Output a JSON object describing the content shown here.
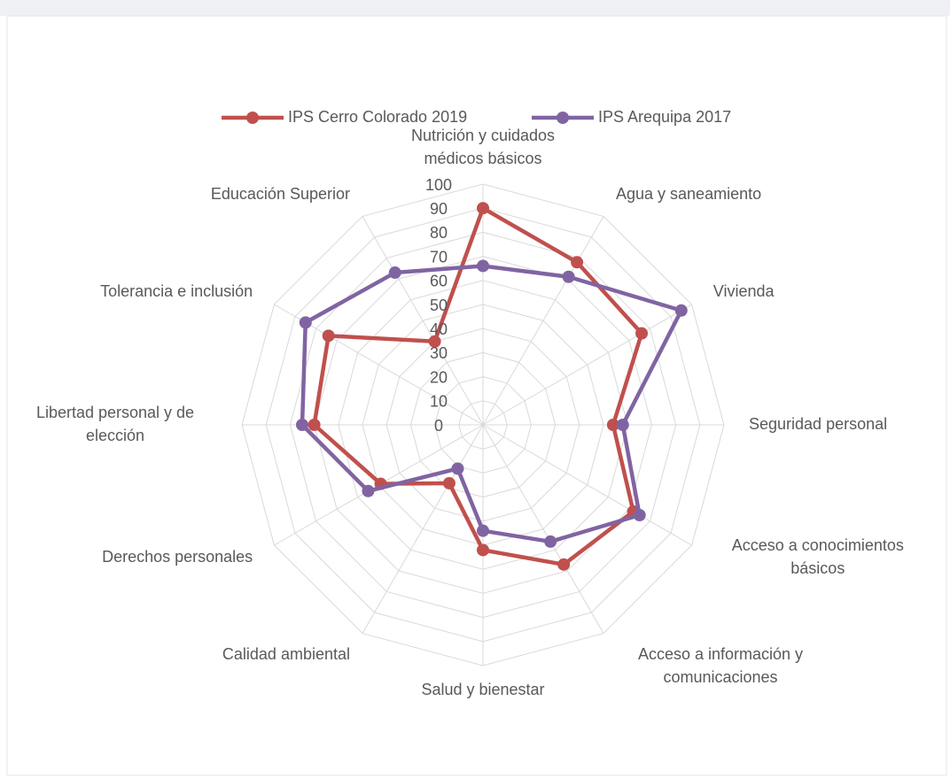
{
  "chart_data": {
    "type": "radar",
    "categories": [
      "Nutrición y cuidados médicos básicos",
      "Agua y saneamiento",
      "Vivienda",
      "Seguridad personal",
      "Acceso a conocimientos básicos",
      "Acceso a información y comunicaciones",
      "Salud y bienestar",
      "Calidad ambiental",
      "Derechos personales",
      "Libertad personal y de elección",
      "Tolerancia e inclusión",
      "Educación Superior"
    ],
    "series": [
      {
        "name": "IPS Cerro Colorado 2019",
        "color": "#c0504d",
        "values": [
          90,
          78,
          76,
          54,
          72,
          67,
          52,
          28,
          49,
          70,
          74,
          40
        ]
      },
      {
        "name": "IPS Arequipa 2017",
        "color": "#8064a2",
        "values": [
          66,
          71,
          95,
          58,
          75,
          56,
          44,
          21,
          55,
          75,
          85,
          73
        ]
      }
    ],
    "ylim": [
      0,
      100
    ],
    "yticks": [
      0,
      10,
      20,
      30,
      40,
      50,
      60,
      70,
      80,
      90,
      100
    ],
    "grid": true,
    "legend": "top"
  }
}
